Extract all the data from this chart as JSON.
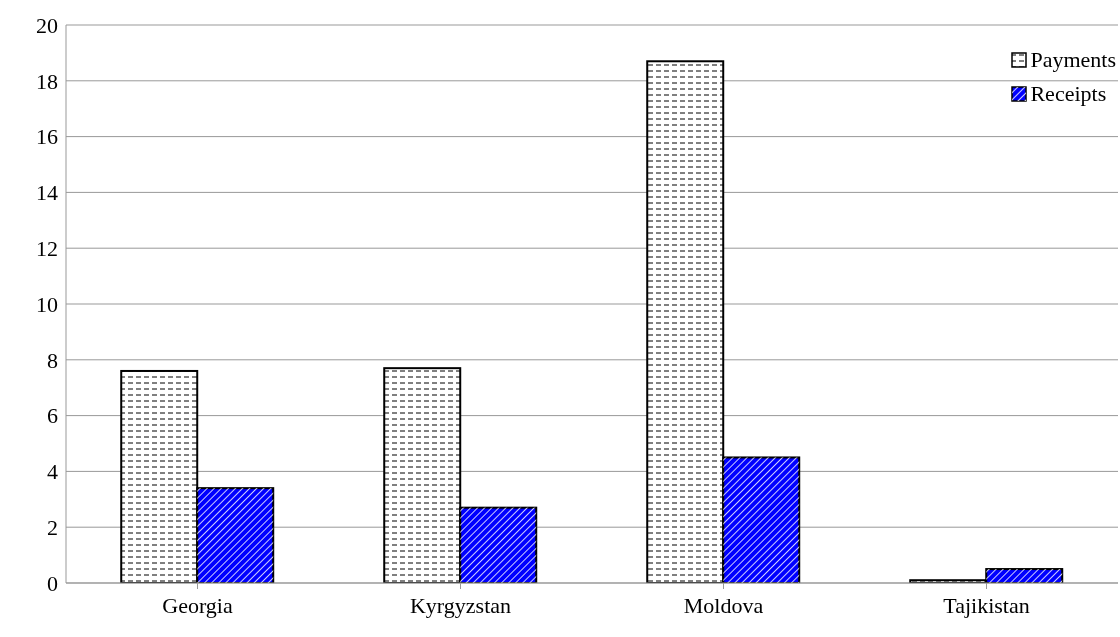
{
  "chart_data": {
    "type": "bar",
    "categories": [
      "Georgia",
      "Kyrgyzstan",
      "Moldova",
      "Tajikistan"
    ],
    "series": [
      {
        "name": "Payments",
        "color": "#ffffff",
        "values": [
          7.6,
          7.7,
          18.7,
          0.1
        ]
      },
      {
        "name": "Receipts",
        "color": "#0000ff",
        "values": [
          3.4,
          2.7,
          4.5,
          0.5
        ]
      }
    ],
    "ylim": [
      0,
      20
    ],
    "yticks": [
      0,
      2,
      4,
      6,
      8,
      10,
      12,
      14,
      16,
      18,
      20
    ],
    "grid": "y",
    "legend": "top right"
  }
}
